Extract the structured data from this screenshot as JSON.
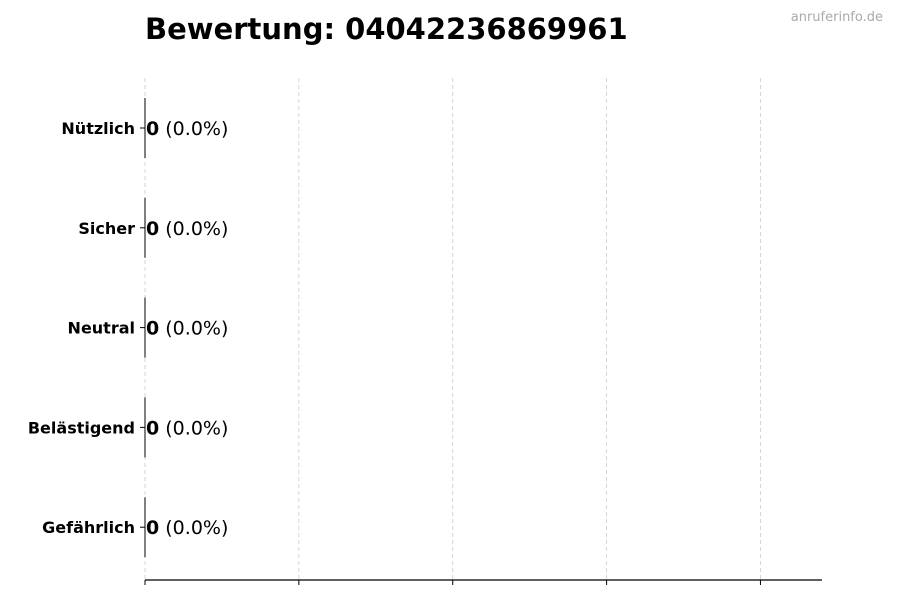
{
  "chart_data": {
    "type": "bar",
    "orientation": "horizontal",
    "title": "Bewertung: 04042236869961",
    "categories": [
      "Nützlich",
      "Sicher",
      "Neutral",
      "Belästigend",
      "Gefährlich"
    ],
    "values": [
      0,
      0,
      0,
      0,
      0
    ],
    "data_labels": [
      {
        "count": "0",
        "percent": "(0.0%)"
      },
      {
        "count": "0",
        "percent": "(0.0%)"
      },
      {
        "count": "0",
        "percent": "(0.0%)"
      },
      {
        "count": "0",
        "percent": "(0.0%)"
      },
      {
        "count": "0",
        "percent": "(0.0%)"
      }
    ],
    "xlabel": "",
    "ylabel": "",
    "xlim": [
      0,
      4.4
    ],
    "xticks": [
      0,
      1,
      2,
      3,
      4
    ],
    "grid": "x, dashed",
    "bar_edge_color": "#000000",
    "grid_color": "#cccccc"
  },
  "watermark": "anruferinfo.de"
}
